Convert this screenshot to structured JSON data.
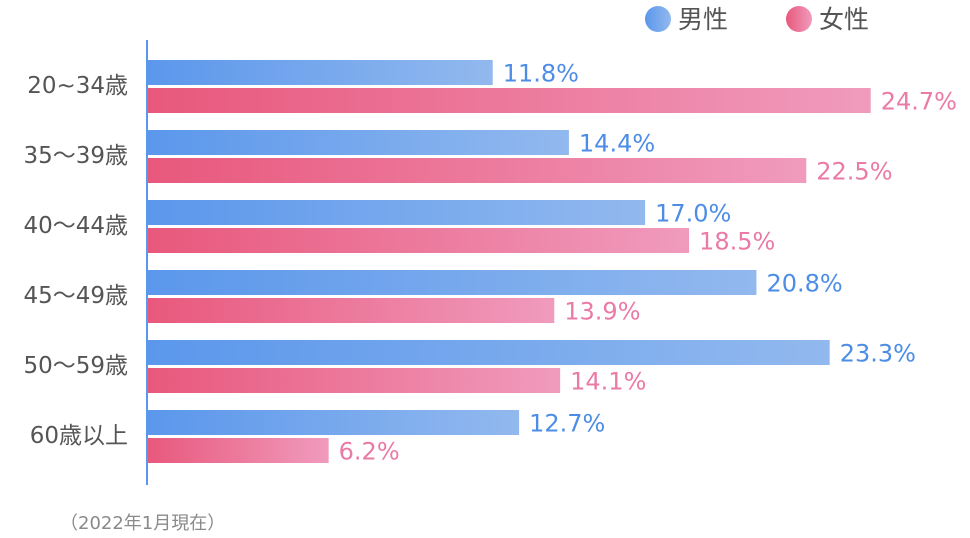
{
  "chart_data": {
    "type": "bar",
    "orientation": "horizontal",
    "categories": [
      "20~34歳",
      "35〜39歳",
      "40〜44歳",
      "45〜49歳",
      "50〜59歳",
      "60歳以上"
    ],
    "series": [
      {
        "name": "男性",
        "values": [
          11.8,
          14.4,
          17.0,
          20.8,
          23.3,
          12.7
        ],
        "labels": [
          "11.8%",
          "14.4%",
          "17.0%",
          "20.8%",
          "23.3%",
          "12.7%"
        ]
      },
      {
        "name": "女性",
        "values": [
          24.7,
          22.5,
          18.5,
          13.9,
          14.1,
          6.2
        ],
        "labels": [
          "24.7%",
          "22.5%",
          "18.5%",
          "13.9%",
          "14.1%",
          "6.2%"
        ]
      }
    ],
    "unit": "%",
    "xlim": [
      0,
      25
    ],
    "grid": false,
    "legend_position": "top-right"
  },
  "colors": {
    "male_bar_start": "#5b97ec",
    "male_bar_end": "#92b9ee",
    "male_text": "#4d8de6",
    "female_bar_start": "#e8587c",
    "female_bar_end": "#f09bbd",
    "female_text": "#ea7aa6",
    "axis": "#5b97ec"
  },
  "note": "（2022年1月現在）"
}
